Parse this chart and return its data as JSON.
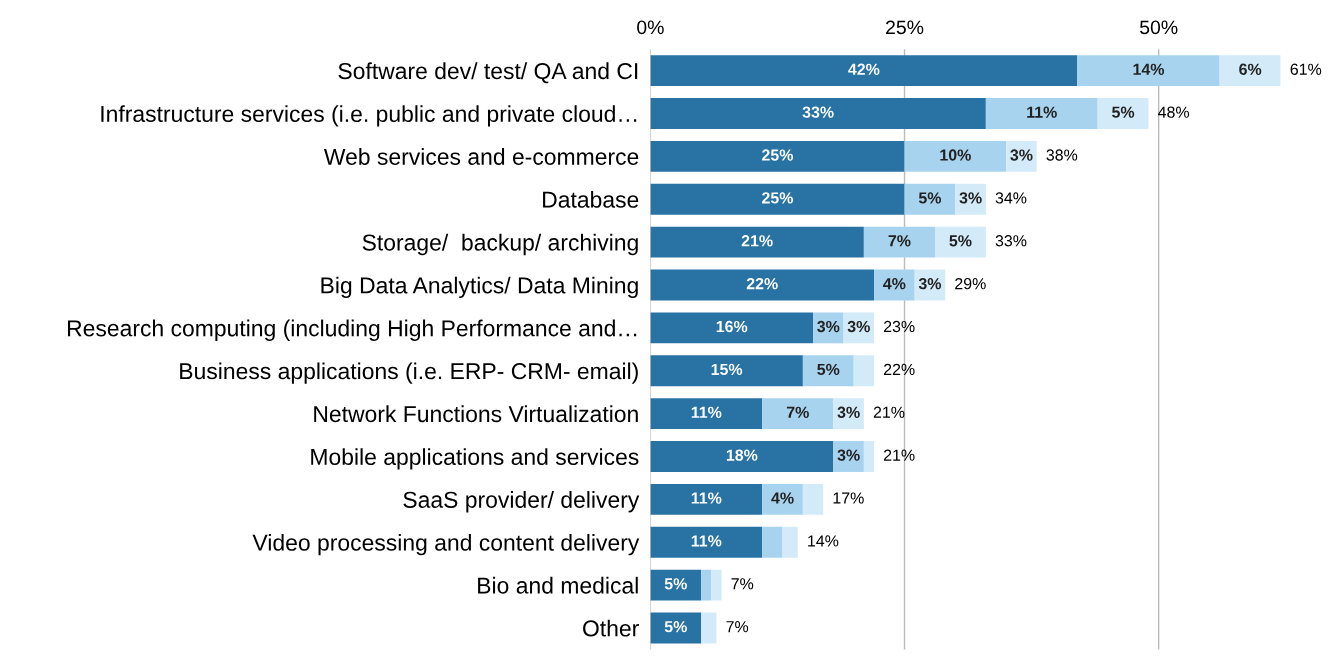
{
  "chart_data": {
    "type": "bar",
    "orientation": "horizontal",
    "stacked": true,
    "categories": [
      "Software dev/ test/ QA and CI",
      "Infrastructure services (i.e. public and private cloud…",
      "Web services and e-commerce",
      "Database",
      "Storage/  backup/ archiving",
      "Big Data Analytics/ Data Mining",
      "Research computing (including High Performance and…",
      "Business applications (i.e. ERP- CRM- email)",
      "Network Functions Virtualization",
      "Mobile applications and services",
      "SaaS provider/ delivery",
      "Video processing and content delivery",
      "Bio and medical",
      "Other"
    ],
    "series": [
      {
        "color": "#2873a4",
        "values": [
          42,
          33,
          25,
          25,
          21,
          22,
          16,
          15,
          11,
          18,
          11,
          11,
          5,
          5
        ],
        "value_labels": [
          "42%",
          "33%",
          "25%",
          "25%",
          "21%",
          "22%",
          "16%",
          "15%",
          "11%",
          "18%",
          "11%",
          "11%",
          "5%",
          "5%"
        ]
      },
      {
        "color": "#a8d3ee",
        "values": [
          14,
          11,
          10,
          5,
          7,
          4,
          3,
          5,
          7,
          3,
          4,
          2,
          1,
          0
        ],
        "value_labels": [
          "14%",
          "11%",
          "10%",
          "5%",
          "7%",
          "4%",
          "3%",
          "5%",
          "7%",
          "3%",
          "4%",
          null,
          null,
          null
        ]
      },
      {
        "color": "#d3eaf8",
        "values": [
          6,
          5,
          3,
          3,
          5,
          3,
          3,
          2,
          3,
          1,
          2,
          1.5,
          1,
          1.5
        ],
        "value_labels": [
          "6%",
          "5%",
          "3%",
          "3%",
          "5%",
          "3%",
          "3%",
          null,
          "3%",
          null,
          null,
          null,
          null,
          null
        ]
      }
    ],
    "totals": [
      "61%",
      "48%",
      "38%",
      "34%",
      "33%",
      "29%",
      "23%",
      "22%",
      "21%",
      "21%",
      "17%",
      "14%",
      "7%",
      "7%"
    ],
    "xlim": [
      0,
      62
    ],
    "xticks": [
      {
        "value": 0,
        "label": "0%"
      },
      {
        "value": 25,
        "label": "25%"
      },
      {
        "value": 50,
        "label": "50%"
      }
    ],
    "grid": "x"
  }
}
